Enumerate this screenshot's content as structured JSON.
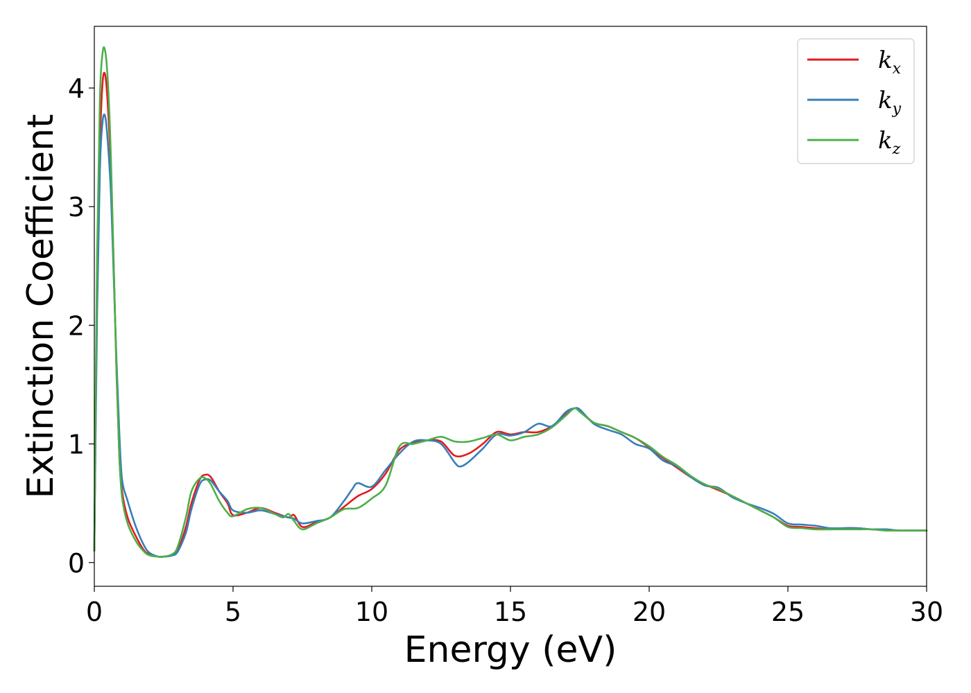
{
  "chart_data": {
    "type": "line",
    "xlabel": "Energy (eV)",
    "ylabel": "Extinction Coefficient",
    "xlim": [
      0,
      30
    ],
    "ylim": [
      -0.2,
      4.52
    ],
    "xticks": [
      0,
      5,
      10,
      15,
      20,
      25,
      30
    ],
    "yticks": [
      0,
      1,
      2,
      3,
      4
    ],
    "grid": false,
    "legend_position": "top-right",
    "series": [
      {
        "name": "k",
        "subscript": "x",
        "color": "#e41a1c",
        "x": [
          0,
          0.1,
          0.2,
          0.3,
          0.4,
          0.5,
          0.6,
          0.7,
          0.8,
          0.9,
          1.0,
          1.2,
          1.5,
          1.8,
          2.0,
          2.3,
          2.5,
          2.8,
          3.0,
          3.3,
          3.5,
          3.8,
          4.0,
          4.2,
          4.5,
          4.8,
          5.0,
          5.5,
          6.0,
          6.5,
          7.0,
          7.2,
          7.5,
          8.0,
          8.5,
          9.0,
          9.5,
          10.0,
          10.5,
          11.0,
          11.5,
          12.0,
          12.5,
          13.0,
          13.5,
          14.0,
          14.5,
          15.0,
          15.5,
          16.0,
          16.5,
          17.0,
          17.3,
          17.5,
          18.0,
          18.5,
          19.0,
          19.5,
          20.0,
          20.5,
          21.0,
          21.5,
          22.0,
          22.5,
          23.0,
          23.5,
          24.0,
          24.5,
          25.0,
          25.5,
          26.0,
          26.5,
          27.0,
          27.5,
          28.0,
          28.5,
          29.0,
          29.5,
          30.0
        ],
        "y": [
          0.1,
          2.3,
          3.5,
          4.05,
          4.1,
          3.8,
          3.3,
          2.5,
          1.6,
          0.9,
          0.6,
          0.38,
          0.22,
          0.1,
          0.07,
          0.05,
          0.05,
          0.06,
          0.1,
          0.3,
          0.5,
          0.7,
          0.74,
          0.72,
          0.6,
          0.5,
          0.4,
          0.42,
          0.46,
          0.42,
          0.38,
          0.4,
          0.3,
          0.34,
          0.38,
          0.47,
          0.56,
          0.62,
          0.75,
          0.95,
          1.01,
          1.03,
          1.02,
          0.9,
          0.92,
          1.0,
          1.1,
          1.08,
          1.1,
          1.1,
          1.15,
          1.25,
          1.3,
          1.28,
          1.18,
          1.15,
          1.1,
          1.05,
          0.97,
          0.88,
          0.8,
          0.72,
          0.66,
          0.61,
          0.56,
          0.5,
          0.44,
          0.38,
          0.31,
          0.3,
          0.29,
          0.28,
          0.29,
          0.29,
          0.28,
          0.28,
          0.27,
          0.27,
          0.27
        ]
      },
      {
        "name": "k",
        "subscript": "y",
        "color": "#377eb8",
        "x": [
          0,
          0.1,
          0.2,
          0.3,
          0.4,
          0.5,
          0.6,
          0.7,
          0.8,
          0.9,
          1.0,
          1.2,
          1.5,
          1.8,
          2.0,
          2.3,
          2.5,
          2.8,
          3.0,
          3.3,
          3.5,
          3.8,
          4.0,
          4.2,
          4.5,
          4.8,
          5.0,
          5.5,
          6.0,
          6.5,
          7.0,
          7.2,
          7.5,
          8.0,
          8.5,
          9.0,
          9.3,
          9.5,
          10.0,
          10.5,
          11.0,
          11.5,
          12.0,
          12.5,
          13.0,
          13.2,
          13.5,
          14.0,
          14.5,
          15.0,
          15.5,
          16.0,
          16.5,
          17.0,
          17.3,
          17.5,
          18.0,
          18.5,
          19.0,
          19.5,
          20.0,
          20.5,
          21.0,
          21.5,
          22.0,
          22.5,
          23.0,
          23.5,
          24.0,
          24.5,
          25.0,
          25.5,
          26.0,
          26.5,
          27.0,
          27.5,
          28.0,
          28.5,
          29.0,
          29.5,
          30.0
        ],
        "y": [
          0.1,
          2.1,
          3.3,
          3.72,
          3.75,
          3.5,
          3.1,
          2.4,
          1.7,
          1.1,
          0.7,
          0.52,
          0.3,
          0.14,
          0.08,
          0.05,
          0.05,
          0.06,
          0.09,
          0.25,
          0.45,
          0.66,
          0.7,
          0.69,
          0.6,
          0.52,
          0.44,
          0.42,
          0.44,
          0.41,
          0.38,
          0.37,
          0.33,
          0.35,
          0.38,
          0.52,
          0.62,
          0.67,
          0.64,
          0.78,
          0.92,
          1.02,
          1.03,
          1.0,
          0.84,
          0.81,
          0.85,
          0.96,
          1.08,
          1.07,
          1.1,
          1.17,
          1.15,
          1.27,
          1.3,
          1.29,
          1.17,
          1.12,
          1.08,
          1.0,
          0.96,
          0.86,
          0.81,
          0.72,
          0.65,
          0.63,
          0.55,
          0.5,
          0.46,
          0.41,
          0.33,
          0.32,
          0.31,
          0.29,
          0.29,
          0.29,
          0.28,
          0.28,
          0.27,
          0.27,
          0.27
        ]
      },
      {
        "name": "k",
        "subscript": "z",
        "color": "#4daf4a",
        "x": [
          0,
          0.1,
          0.2,
          0.3,
          0.4,
          0.5,
          0.6,
          0.7,
          0.8,
          0.9,
          1.0,
          1.2,
          1.5,
          1.8,
          2.0,
          2.3,
          2.5,
          2.8,
          3.0,
          3.3,
          3.5,
          3.8,
          4.0,
          4.2,
          4.5,
          4.8,
          5.0,
          5.5,
          6.0,
          6.5,
          6.8,
          7.0,
          7.2,
          7.5,
          8.0,
          8.5,
          9.0,
          9.5,
          10.0,
          10.5,
          11.0,
          11.5,
          12.0,
          12.5,
          13.0,
          13.5,
          14.0,
          14.5,
          15.0,
          15.5,
          16.0,
          16.5,
          17.0,
          17.3,
          17.5,
          18.0,
          18.5,
          19.0,
          19.5,
          20.0,
          20.5,
          21.0,
          21.5,
          22.0,
          22.5,
          23.0,
          23.5,
          24.0,
          24.5,
          25.0,
          25.5,
          26.0,
          26.5,
          27.0,
          27.5,
          28.0,
          28.5,
          29.0,
          29.5,
          30.0
        ],
        "y": [
          0.1,
          2.6,
          3.9,
          4.3,
          4.3,
          4.0,
          3.4,
          2.5,
          1.6,
          0.9,
          0.55,
          0.33,
          0.18,
          0.09,
          0.06,
          0.05,
          0.05,
          0.07,
          0.13,
          0.38,
          0.6,
          0.71,
          0.71,
          0.66,
          0.52,
          0.42,
          0.39,
          0.45,
          0.46,
          0.41,
          0.38,
          0.41,
          0.35,
          0.28,
          0.33,
          0.38,
          0.45,
          0.46,
          0.54,
          0.65,
          0.98,
          1.0,
          1.03,
          1.06,
          1.02,
          1.02,
          1.05,
          1.08,
          1.03,
          1.06,
          1.08,
          1.14,
          1.24,
          1.3,
          1.27,
          1.18,
          1.15,
          1.1,
          1.05,
          0.98,
          0.89,
          0.82,
          0.73,
          0.66,
          0.62,
          0.56,
          0.5,
          0.44,
          0.38,
          0.3,
          0.29,
          0.28,
          0.28,
          0.28,
          0.28,
          0.28,
          0.27,
          0.27,
          0.27,
          0.27
        ]
      }
    ]
  }
}
